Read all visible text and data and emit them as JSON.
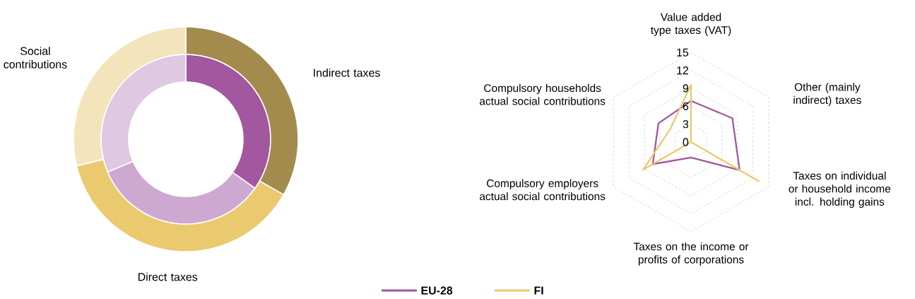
{
  "chart_data": [
    {
      "type": "donut",
      "categories": [
        "Indirect taxes",
        "Direct taxes",
        "Social contributions"
      ],
      "series": [
        {
          "values": [
            34.8,
            33.9,
            31.3
          ],
          "colors": [
            "#a2579e",
            "#cda9d1",
            "#dec8e2"
          ]
        },
        {
          "values": [
            33.2,
            38.0,
            28.8
          ],
          "colors": [
            "#a38b4e",
            "#ebc96e",
            "#f4e4bb"
          ]
        }
      ]
    },
    {
      "type": "radar",
      "categories": [
        "Value added type taxes (VAT)",
        "Other (mainly indirect) taxes",
        "Taxes on individual or household income incl. holding gains",
        "Taxes on the income or profits of corporations",
        "Compulsory employers actual social contributions",
        "Compulsory households actual social contributions"
      ],
      "series": [
        {
          "name": "EU-28",
          "color": "#a2579e",
          "values": [
            6.9,
            8.0,
            9.4,
            2.6,
            7.4,
            6.3
          ]
        },
        {
          "name": "FI",
          "color": "#ebc96e",
          "values": [
            9.6,
            0,
            13.1,
            0,
            9.3,
            4.1
          ]
        }
      ],
      "ylim": [
        0,
        15
      ],
      "yticks": [
        0,
        3,
        6,
        9,
        12,
        15
      ],
      "grid": true,
      "legend": "bottom"
    }
  ]
}
